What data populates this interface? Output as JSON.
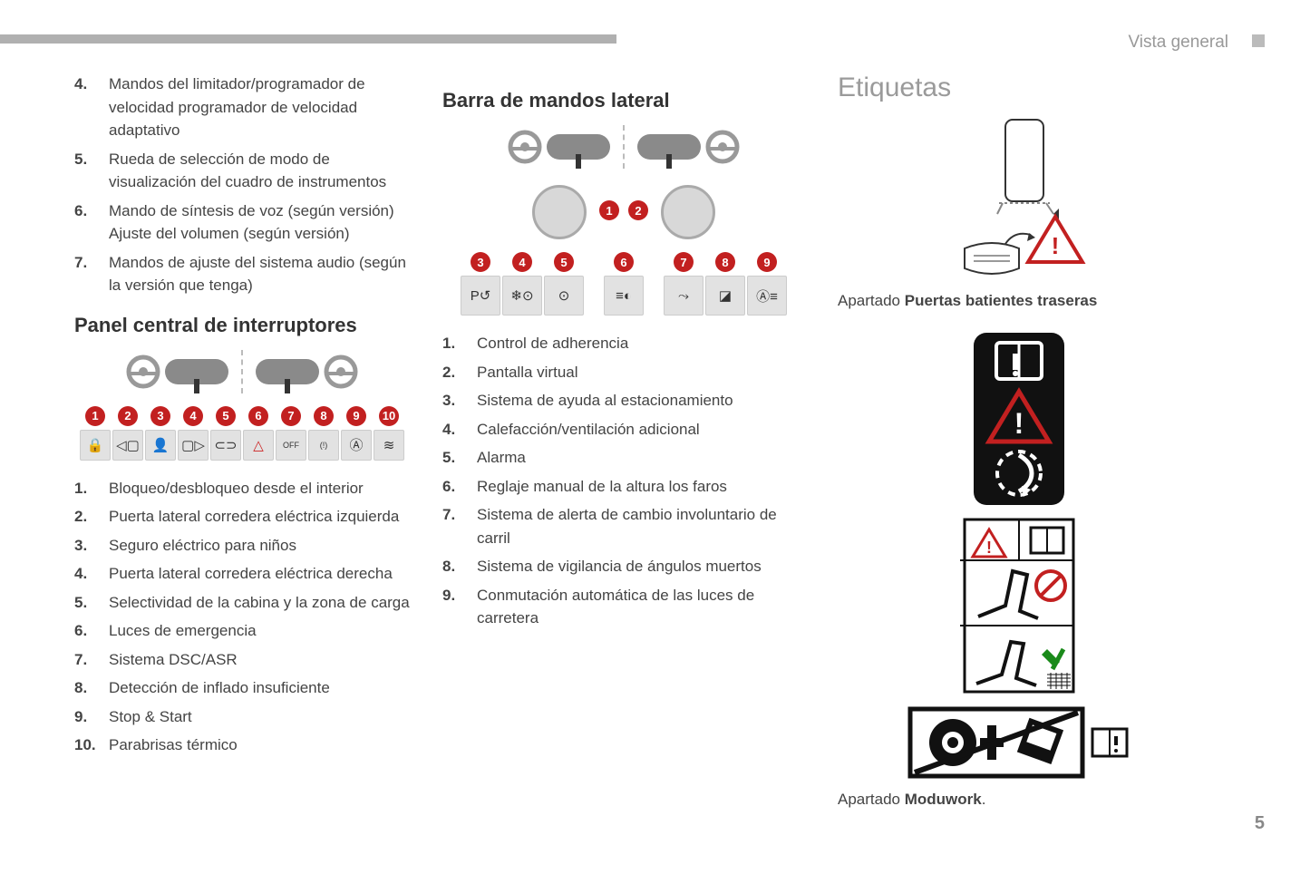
{
  "meta": {
    "header_label": "Vista general",
    "page_number": "5",
    "colors": {
      "badge": "#c22020",
      "top_bar": "#b0b0b0",
      "text": "#3a3a3a",
      "faded": "#9a9a9a",
      "button_bg": "#e2e2e2"
    }
  },
  "col1": {
    "intro_list": [
      {
        "n": "4.",
        "t": "Mandos del limitador/programador de velocidad programador de velocidad adaptativo"
      },
      {
        "n": "5.",
        "t": "Rueda de selección de modo de visualización del cuadro de instrumentos"
      },
      {
        "n": "6.",
        "t": "Mando de síntesis de voz (según versión) Ajuste del volumen (según versión)"
      },
      {
        "n": "7.",
        "t": "Mandos de ajuste del sistema audio (según la versión que tenga)"
      }
    ],
    "heading": "Panel central de interruptores",
    "buttons": [
      {
        "n": "1",
        "glyph": "🔒"
      },
      {
        "n": "2",
        "glyph": "◁▢"
      },
      {
        "n": "3",
        "glyph": "👤"
      },
      {
        "n": "4",
        "glyph": "▢▷"
      },
      {
        "n": "5",
        "glyph": "⊂⊃"
      },
      {
        "n": "6",
        "glyph": "△"
      },
      {
        "n": "7",
        "glyph": "OFF"
      },
      {
        "n": "8",
        "glyph": "(!)"
      },
      {
        "n": "9",
        "glyph": "Ⓐ"
      },
      {
        "n": "10",
        "glyph": "≋"
      }
    ],
    "list": [
      {
        "n": "1.",
        "t": "Bloqueo/desbloqueo desde el interior"
      },
      {
        "n": "2.",
        "t": "Puerta lateral corredera eléctrica izquierda"
      },
      {
        "n": "3.",
        "t": "Seguro eléctrico para niños"
      },
      {
        "n": "4.",
        "t": "Puerta lateral corredera eléctrica derecha"
      },
      {
        "n": "5.",
        "t": "Selectividad de la cabina y la zona de carga"
      },
      {
        "n": "6.",
        "t": "Luces de emergencia"
      },
      {
        "n": "7.",
        "t": "Sistema DSC/ASR"
      },
      {
        "n": "8.",
        "t": "Detección de inflado insuficiente"
      },
      {
        "n": "9.",
        "t": "Stop & Start"
      },
      {
        "n": "10.",
        "t": "Parabrisas térmico"
      }
    ]
  },
  "col2": {
    "heading": "Barra de mandos lateral",
    "dial_badges": [
      "1",
      "2"
    ],
    "buttons": [
      {
        "n": "3",
        "glyph": "P↺"
      },
      {
        "n": "4",
        "glyph": "❄⊙"
      },
      {
        "n": "5",
        "glyph": "⊙"
      },
      {
        "n": "6",
        "glyph": "≡◐"
      },
      {
        "n": "7",
        "glyph": "⤳"
      },
      {
        "n": "8",
        "glyph": "◪"
      },
      {
        "n": "9",
        "glyph": "Ⓐ≡"
      }
    ],
    "list": [
      {
        "n": "1.",
        "t": "Control de adherencia"
      },
      {
        "n": "2.",
        "t": "Pantalla virtual"
      },
      {
        "n": "3.",
        "t": "Sistema de ayuda al estacionamiento"
      },
      {
        "n": "4.",
        "t": "Calefacción/ventilación adicional"
      },
      {
        "n": "5.",
        "t": "Alarma"
      },
      {
        "n": "6.",
        "t": "Reglaje manual de la altura los faros"
      },
      {
        "n": "7.",
        "t": "Sistema de alerta de cambio involuntario de carril"
      },
      {
        "n": "8.",
        "t": "Sistema de vigilancia de ángulos muertos"
      },
      {
        "n": "9.",
        "t": "Conmutación automática de las luces de carretera"
      }
    ]
  },
  "col3": {
    "heading": "Etiquetas",
    "caption1_prefix": "Apartado ",
    "caption1_bold": "Puertas batientes traseras",
    "caption2_prefix": "Apartado ",
    "caption2_bold": "Moduwork",
    "caption2_suffix": "."
  }
}
